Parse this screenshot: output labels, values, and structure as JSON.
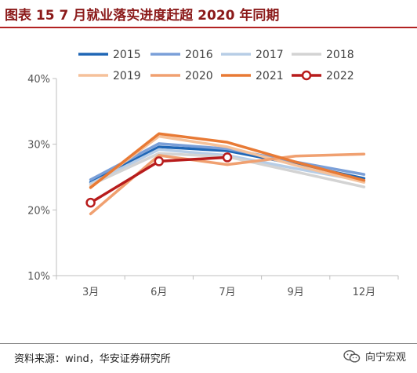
{
  "header": {
    "title": "图表 15 7 月就业落实进度赶超 2020 年同期"
  },
  "footer": {
    "source": "资料来源：wind，华安证券研究所",
    "watermark": "向宁宏观",
    "watermark_icon": "wechat-icon"
  },
  "chart_data": {
    "type": "line",
    "categories": [
      "3月",
      "6月",
      "7月",
      "9月",
      "12月"
    ],
    "ylim": [
      10,
      40
    ],
    "yticks": [
      10,
      20,
      30,
      40
    ],
    "ytick_labels": [
      "10%",
      "20%",
      "30%",
      "40%"
    ],
    "grid": false,
    "legend_position": "top",
    "series": [
      {
        "name": "2015",
        "color": "#1f66b5",
        "width": 3.5,
        "marker": false,
        "values": [
          24.2,
          29.6,
          29.0,
          27.0,
          24.8
        ]
      },
      {
        "name": "2016",
        "color": "#7a9fd8",
        "width": 3.5,
        "marker": false,
        "values": [
          24.6,
          30.1,
          29.3,
          27.3,
          25.4
        ]
      },
      {
        "name": "2017",
        "color": "#b7cde6",
        "width": 3.5,
        "marker": false,
        "values": [
          24.0,
          29.2,
          28.3,
          26.3,
          24.4
        ]
      },
      {
        "name": "2018",
        "color": "#d3d3d3",
        "width": 3.5,
        "marker": false,
        "values": [
          23.8,
          28.6,
          28.1,
          25.8,
          23.5
        ]
      },
      {
        "name": "2019",
        "color": "#f5c19a",
        "width": 3.5,
        "marker": false,
        "values": [
          23.5,
          31.2,
          29.6,
          26.8,
          24.2
        ]
      },
      {
        "name": "2020",
        "color": "#f0a070",
        "width": 3.5,
        "marker": false,
        "values": [
          19.4,
          28.3,
          26.9,
          28.2,
          28.5
        ]
      },
      {
        "name": "2021",
        "color": "#e87a35",
        "width": 3.5,
        "marker": false,
        "values": [
          23.4,
          31.6,
          30.3,
          27.3,
          24.5
        ]
      },
      {
        "name": "2022",
        "color": "#b81c1c",
        "width": 3.5,
        "marker": true,
        "values": [
          21.1,
          27.4,
          28.0,
          null,
          null
        ]
      }
    ]
  }
}
